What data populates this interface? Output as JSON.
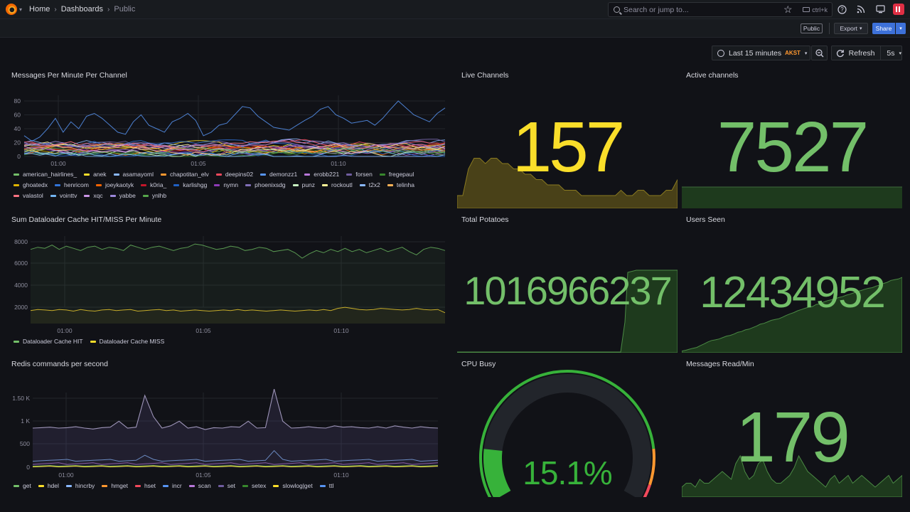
{
  "nav": {
    "crumbs": [
      "Home",
      "Dashboards"
    ],
    "current": "Public",
    "search_placeholder": "Search or jump to...",
    "search_shortcut": "ctrl+k"
  },
  "toolbar": {
    "public_badge": "Public",
    "export_label": "Export",
    "share_label": "Share",
    "time_range": "Last 15 minutes",
    "timezone": "AKST",
    "refresh_label": "Refresh",
    "refresh_rate": "5s"
  },
  "colors": {
    "green": "#73bf69",
    "yellow": "#fade2a",
    "accent_blue": "#3d71d9"
  },
  "panels": {
    "messages": {
      "title": "Messages Per Minute Per Channel",
      "yticks": [
        "80",
        "60",
        "40",
        "20",
        "0"
      ],
      "xticks": [
        "01:00",
        "01:05",
        "01:10"
      ],
      "legend": [
        {
          "name": "american_hairlines_",
          "color": "#73bf69"
        },
        {
          "name": "anek",
          "color": "#fade2a"
        },
        {
          "name": "asamayoml",
          "color": "#8ab8ff"
        },
        {
          "name": "chapotitan_elv",
          "color": "#ff9830"
        },
        {
          "name": "deepins02",
          "color": "#f2495c"
        },
        {
          "name": "demonzz1",
          "color": "#5794f2"
        },
        {
          "name": "erobb221",
          "color": "#b877d9"
        },
        {
          "name": "forsen",
          "color": "#705da0"
        },
        {
          "name": "fregepaul",
          "color": "#37872d"
        },
        {
          "name": "ghoatedx",
          "color": "#e0b400"
        },
        {
          "name": "henricom",
          "color": "#3274d9"
        },
        {
          "name": "joeykaotyk",
          "color": "#fa6400"
        },
        {
          "name": "k0ria_",
          "color": "#c4162a"
        },
        {
          "name": "karlishgg",
          "color": "#1f60c4"
        },
        {
          "name": "nymn",
          "color": "#8f3bb8"
        },
        {
          "name": "phoenixsdg",
          "color": "#806eb7"
        },
        {
          "name": "punz",
          "color": "#c8f2c2"
        },
        {
          "name": "rockoutl",
          "color": "#fff899"
        },
        {
          "name": "t2x2",
          "color": "#8ab8ff"
        },
        {
          "name": "telinha",
          "color": "#ffb357"
        },
        {
          "name": "valastol",
          "color": "#ff7383"
        },
        {
          "name": "vointtv",
          "color": "#73b5f2"
        },
        {
          "name": "xqc",
          "color": "#ca95e5"
        },
        {
          "name": "yabbe",
          "color": "#9d88dc"
        },
        {
          "name": "ynlhb",
          "color": "#56a64b"
        }
      ]
    },
    "live_channels": {
      "title": "Live Channels",
      "value": "157",
      "color": "#fade2a"
    },
    "active_channels": {
      "title": "Active channels",
      "value": "7527",
      "color": "#73bf69"
    },
    "dataloader": {
      "title": "Sum Dataloader Cache HIT/MISS Per Minute",
      "yticks": [
        "8000",
        "6000",
        "4000",
        "2000"
      ],
      "xticks": [
        "01:00",
        "01:05",
        "01:10"
      ],
      "legend": [
        {
          "name": "Dataloader Cache HIT",
          "color": "#73bf69"
        },
        {
          "name": "Dataloader Cache MISS",
          "color": "#fade2a"
        }
      ]
    },
    "total_potatoes": {
      "title": "Total Potatoes",
      "value": "1016966237",
      "color": "#73bf69"
    },
    "users_seen": {
      "title": "Users Seen",
      "value": "12434952",
      "color": "#73bf69"
    },
    "redis": {
      "title": "Redis commands per second",
      "yticks": [
        "1.50 K",
        "1 K",
        "500",
        "0"
      ],
      "xticks": [
        "01:00",
        "01:05",
        "01:10"
      ],
      "legend": [
        {
          "name": "get",
          "color": "#73bf69"
        },
        {
          "name": "hdel",
          "color": "#fade2a"
        },
        {
          "name": "hincrby",
          "color": "#8ab8ff"
        },
        {
          "name": "hmget",
          "color": "#ff9830"
        },
        {
          "name": "hset",
          "color": "#f2495c"
        },
        {
          "name": "incr",
          "color": "#5794f2"
        },
        {
          "name": "scan",
          "color": "#b877d9"
        },
        {
          "name": "set",
          "color": "#705da0"
        },
        {
          "name": "setex",
          "color": "#37872d"
        },
        {
          "name": "slowlog|get",
          "color": "#fade2a"
        },
        {
          "name": "ttl",
          "color": "#5794f2"
        }
      ]
    },
    "cpu_busy": {
      "title": "CPU Busy",
      "value": "15.1%",
      "percent": 15.1,
      "color": "#37b23a"
    },
    "messages_read": {
      "title": "Messages Read/Min",
      "value": "179",
      "color": "#73bf69"
    }
  }
}
